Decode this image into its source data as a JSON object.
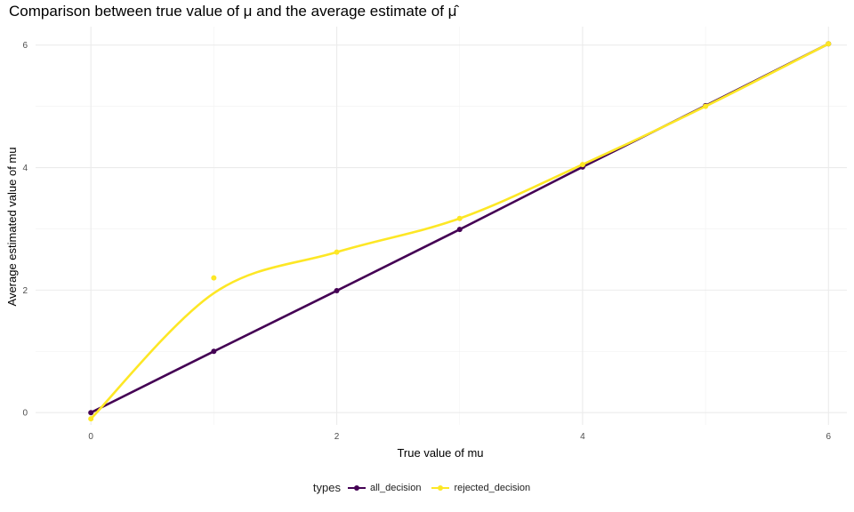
{
  "chart_data": {
    "type": "line",
    "title": "Comparison between true value of μ and the average estimate of μ̂",
    "xlabel": "True value of mu",
    "ylabel": "Average estimated value of mu",
    "xlim": [
      -0.45,
      6.15
    ],
    "ylim": [
      -0.2,
      6.3
    ],
    "x_ticks": [
      0,
      2,
      4,
      6
    ],
    "y_ticks": [
      0,
      2,
      4,
      6
    ],
    "grid": true,
    "legend_position": "bottom",
    "legend_title": "types",
    "series": [
      {
        "name": "all_decision",
        "color": "#440154",
        "x": [
          0,
          1,
          2,
          3,
          4,
          5,
          6
        ],
        "y": [
          0.0,
          1.0,
          1.99,
          2.99,
          4.01,
          5.01,
          6.02
        ]
      },
      {
        "name": "rejected_decision",
        "color": "#FDE725",
        "x": [
          0,
          1,
          2,
          3,
          4,
          5,
          6
        ],
        "y": [
          -0.1,
          2.2,
          2.62,
          3.17,
          4.05,
          5.0,
          6.02
        ],
        "smooth_y": [
          -0.1,
          1.95,
          2.62,
          3.17,
          4.05,
          5.0,
          6.02
        ]
      }
    ]
  }
}
